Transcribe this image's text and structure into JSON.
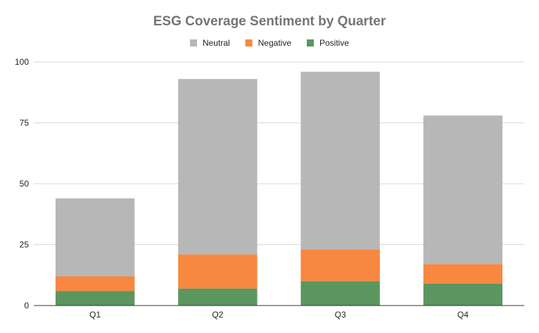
{
  "chart_data": {
    "type": "bar",
    "stacked": true,
    "title": "ESG Coverage Sentiment by Quarter",
    "categories": [
      "Q1",
      "Q2",
      "Q3",
      "Q4"
    ],
    "series": [
      {
        "name": "Positive",
        "color": "#5b965f",
        "values": [
          6,
          7,
          10,
          9
        ]
      },
      {
        "name": "Negative",
        "color": "#f88740",
        "values": [
          6,
          14,
          13,
          8
        ]
      },
      {
        "name": "Neutral",
        "color": "#b7b7b7",
        "values": [
          32,
          72,
          73,
          61
        ]
      }
    ],
    "legend_order": [
      "Neutral",
      "Negative",
      "Positive"
    ],
    "ylim": [
      0,
      100
    ],
    "yticks": [
      "0",
      "25",
      "50",
      "75",
      "100"
    ],
    "grid": true,
    "legend_position": "top"
  }
}
